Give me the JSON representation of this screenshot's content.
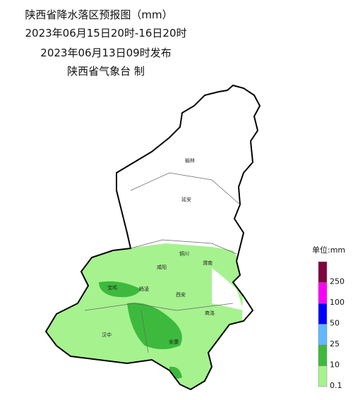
{
  "header": {
    "title": "陕西省降水落区预报图（mm）",
    "period": "2023年06月15日20时-16日20时",
    "issued": "2023年06月13日09时发布",
    "maker": "陕西省气象台 制"
  },
  "cities": [
    "榆林",
    "延安",
    "铜川",
    "渭南",
    "咸阳",
    "宝鸡",
    "杨凌",
    "西安",
    "商洛",
    "汉中",
    "安康"
  ],
  "legend": {
    "unit": "单位:mm",
    "ticks": [
      0.1,
      10,
      25,
      50,
      100,
      250
    ],
    "colors": [
      "#a6f28f",
      "#3dba3d",
      "#61b8ff",
      "#0000fe",
      "#fa00fa",
      "#800040"
    ]
  }
}
